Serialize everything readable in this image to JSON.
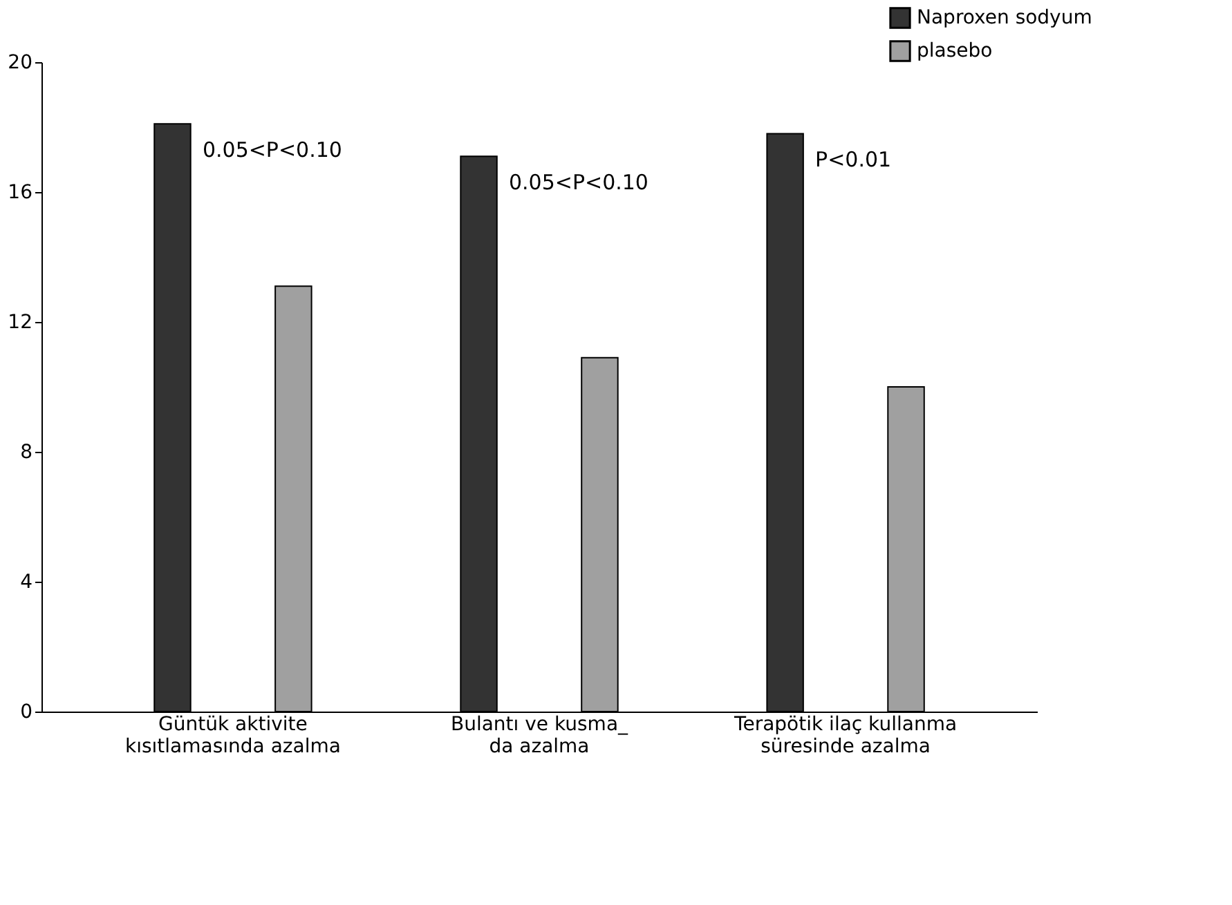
{
  "chart_data": {
    "type": "bar",
    "categories": [
      "Güntük aktivite\nkısıtlamasında azalma",
      "Bulantı ve kusma_\nda azalma",
      "Terapötik ilaç kullanma\nsüresinde azalma"
    ],
    "series": [
      {
        "name": "Naproxen sodyum",
        "color": "#333333",
        "values": [
          18.1,
          17.1,
          17.8
        ]
      },
      {
        "name": "plasebo",
        "color": "#a0a0a0",
        "values": [
          13.1,
          10.9,
          10.0
        ]
      }
    ],
    "ylim": [
      0,
      20
    ],
    "yticks": [
      0,
      4,
      8,
      12,
      16,
      20
    ],
    "grid": false,
    "legend": "top right",
    "annotations": [
      "0.05<P<0.10",
      "0.05<P<0.10",
      "P<0.01"
    ]
  }
}
